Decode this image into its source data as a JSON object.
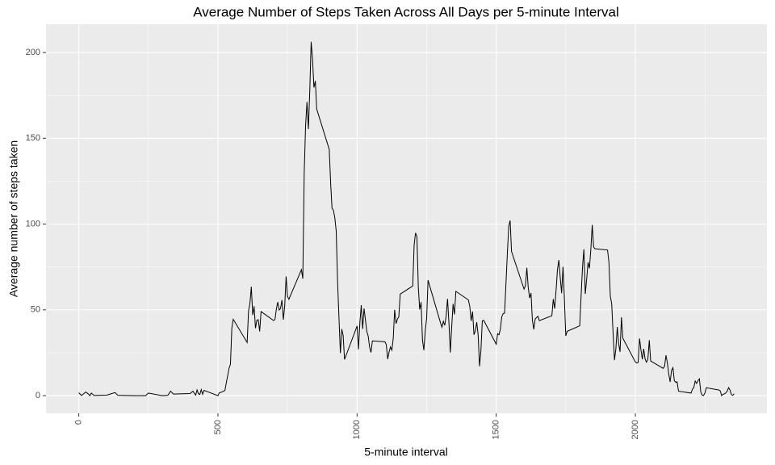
{
  "chart_data": {
    "type": "line",
    "title": "Average Number of Steps Taken Across All Days per 5-minute Interval",
    "x_label": "5-minute interval",
    "y_label": "Average number of steps taken",
    "x": [
      0,
      10,
      25,
      35,
      40,
      45,
      55,
      100,
      130,
      140,
      200,
      230,
      240,
      250,
      300,
      320,
      330,
      340,
      400,
      410,
      420,
      425,
      430,
      435,
      440,
      445,
      450,
      500,
      505,
      515,
      525,
      540,
      545,
      550,
      555,
      605,
      610,
      615,
      620,
      625,
      630,
      635,
      640,
      645,
      650,
      655,
      700,
      705,
      710,
      715,
      720,
      725,
      730,
      735,
      740,
      745,
      750,
      755,
      800,
      805,
      810,
      815,
      820,
      825,
      830,
      835,
      840,
      845,
      850,
      855,
      900,
      905,
      910,
      915,
      920,
      925,
      930,
      935,
      940,
      945,
      950,
      955,
      1000,
      1005,
      1010,
      1015,
      1020,
      1025,
      1030,
      1035,
      1040,
      1045,
      1050,
      1055,
      1100,
      1105,
      1110,
      1115,
      1120,
      1125,
      1130,
      1135,
      1140,
      1145,
      1150,
      1155,
      1200,
      1205,
      1210,
      1215,
      1220,
      1225,
      1230,
      1235,
      1240,
      1245,
      1250,
      1255,
      1300,
      1305,
      1310,
      1315,
      1320,
      1325,
      1330,
      1335,
      1340,
      1345,
      1350,
      1355,
      1400,
      1405,
      1410,
      1415,
      1420,
      1425,
      1430,
      1435,
      1440,
      1445,
      1450,
      1455,
      1500,
      1505,
      1510,
      1515,
      1520,
      1525,
      1530,
      1535,
      1540,
      1545,
      1550,
      1555,
      1600,
      1605,
      1610,
      1615,
      1620,
      1625,
      1630,
      1635,
      1640,
      1645,
      1650,
      1655,
      1700,
      1705,
      1710,
      1715,
      1720,
      1725,
      1730,
      1735,
      1740,
      1745,
      1750,
      1755,
      1800,
      1805,
      1810,
      1815,
      1820,
      1825,
      1830,
      1835,
      1840,
      1845,
      1850,
      1855,
      1900,
      1905,
      1910,
      1915,
      1920,
      1925,
      1930,
      1935,
      1940,
      1945,
      1950,
      1955,
      2000,
      2005,
      2010,
      2015,
      2020,
      2025,
      2030,
      2035,
      2040,
      2045,
      2050,
      2055,
      2100,
      2105,
      2110,
      2115,
      2120,
      2125,
      2130,
      2135,
      2140,
      2145,
      2150,
      2155,
      2200,
      2205,
      2210,
      2215,
      2220,
      2225,
      2230,
      2235,
      2240,
      2245,
      2250,
      2255,
      2300,
      2305,
      2310,
      2315,
      2320,
      2325,
      2330,
      2335,
      2340,
      2345,
      2350,
      2355
    ],
    "series": [
      {
        "color": "#000000",
        "values": [
          1.7,
          0.1,
          2.1,
          0.9,
          0,
          1.5,
          0.1,
          0.3,
          1.8,
          0.2,
          0,
          0,
          0,
          1.5,
          0,
          0.2,
          2.6,
          0.9,
          1.2,
          2.6,
          0.3,
          3.3,
          1.1,
          0.7,
          3.5,
          0.8,
          3.1,
          0,
          1.6,
          2.2,
          3.0,
          16,
          18.3,
          39.5,
          44.5,
          31,
          49.3,
          53.8,
          63.5,
          47.0,
          52.1,
          39.3,
          44.0,
          44.2,
          37.4,
          49.0,
          43.8,
          44.4,
          50.5,
          54.5,
          49.9,
          50.9,
          55.7,
          44.3,
          52.3,
          69.5,
          57.8,
          56.2,
          73.4,
          68.2,
          129.4,
          157.5,
          171.2,
          155.4,
          177.3,
          206.2,
          195.9,
          179.6,
          183.4,
          167.0,
          143.5,
          124.0,
          109.1,
          108.1,
          103.7,
          96.0,
          66.2,
          45.2,
          24.8,
          38.8,
          35.0,
          21.1,
          40.6,
          27,
          42.4,
          52.7,
          38.9,
          50.8,
          44.3,
          37.4,
          34.7,
          28.3,
          25.1,
          31.9,
          31.4,
          29.7,
          21.3,
          25.5,
          28.4,
          26.5,
          33.4,
          50.0,
          42.0,
          44.6,
          46.0,
          59.2,
          63.9,
          87.7,
          94.8,
          92.8,
          63.4,
          50.2,
          54.5,
          32.4,
          26.5,
          37.7,
          45.1,
          67.3,
          42.3,
          39.9,
          43.3,
          41.0,
          46.2,
          56.4,
          42.8,
          25.1,
          40.0,
          53.5,
          47.3,
          60.8,
          55.8,
          52.0,
          43.6,
          49.0,
          35.5,
          37.8,
          42.8,
          35.5,
          17.1,
          26.2,
          43.6,
          43.9,
          30.0,
          36.1,
          35.5,
          38.8,
          46.0,
          47.8,
          48.1,
          65.3,
          82.9,
          98.7,
          102.1,
          84.0,
          62.1,
          64.1,
          74.5,
          63.2,
          56.9,
          59.8,
          43.9,
          38.6,
          44.7,
          45.5,
          46.2,
          43.7,
          46.6,
          56.3,
          50.7,
          61.2,
          73.3,
          79.0,
          68.9,
          59.7,
          75.1,
          56.5,
          34.8,
          37.5,
          40.7,
          58.0,
          74.7,
          85.3,
          59.3,
          67.8,
          77.7,
          74.2,
          85.3,
          99.5,
          86.6,
          85.6,
          84.9,
          77.8,
          58.0,
          53.4,
          36.3,
          20.7,
          27.4,
          40.0,
          30.2,
          25.5,
          45.7,
          33.5,
          19.6,
          19.0,
          19.3,
          33.3,
          26.8,
          21.2,
          27.3,
          21.3,
          19.5,
          21.3,
          32.3,
          20.2,
          15.9,
          17.2,
          23.5,
          19.2,
          12.5,
          8.0,
          14.7,
          16.3,
          8.7,
          7.8,
          8.1,
          2.6,
          1.5,
          3.7,
          4.8,
          8.5,
          7.1,
          8.7,
          9.8,
          2.2,
          0.3,
          0.1,
          1.6,
          4.6,
          3.3,
          2.8,
          0,
          0.8,
          1.0,
          1.6,
          2.6,
          4.7,
          3.3,
          0.6,
          0.2,
          1.1
        ]
      }
    ],
    "xlim": [
      -117.75,
      2472.75
    ],
    "ylim": [
      -10.31,
      216.48
    ],
    "xticks": [
      0,
      500,
      1000,
      1500,
      2000
    ],
    "yticks": [
      0,
      50,
      100,
      150,
      200
    ],
    "x_minor_ticks": [
      250,
      750,
      1250,
      1750,
      2250
    ],
    "y_minor_ticks": [
      25,
      75,
      125,
      175
    ],
    "grid": true,
    "panel_color": "#ebebeb"
  }
}
